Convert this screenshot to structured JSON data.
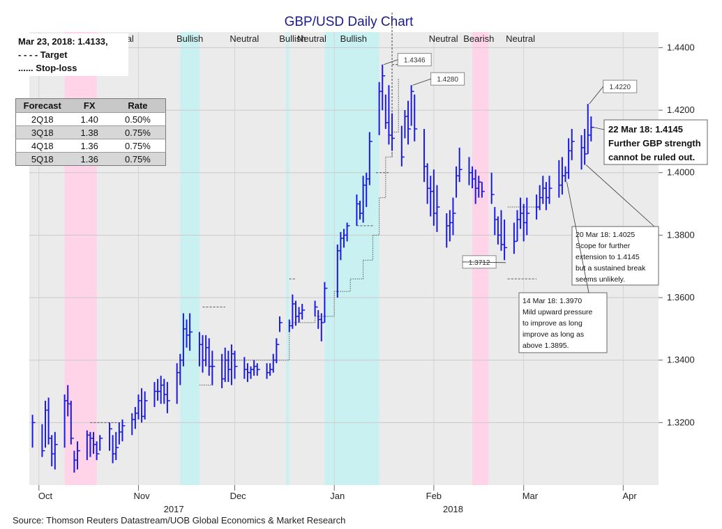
{
  "chart_data": {
    "type": "ohlc",
    "title": "GBP/USD Daily Chart",
    "xlabel": "",
    "ylabel": "",
    "ylim": [
      1.3,
      1.445
    ],
    "y_ticks": [
      "1.3200",
      "1.3400",
      "1.3600",
      "1.3800",
      "1.4000",
      "1.4200",
      "1.4400"
    ],
    "y_tick_values": [
      1.32,
      1.34,
      1.36,
      1.38,
      1.4,
      1.42,
      1.44
    ],
    "x_range": [
      "2017-09-28",
      "2018-04-12"
    ],
    "month_labels": [
      {
        "label": "Oct",
        "date": "2017-10-03"
      },
      {
        "label": "Nov",
        "date": "2017-11-02"
      },
      {
        "label": "Dec",
        "date": "2017-12-02"
      },
      {
        "label": "Jan",
        "date": "2018-01-02"
      },
      {
        "label": "Feb",
        "date": "2018-02-01"
      },
      {
        "label": "Mar",
        "date": "2018-03-03"
      },
      {
        "label": "Apr",
        "date": "2018-04-03"
      }
    ],
    "year_labels": [
      {
        "label": "2017",
        "date": "2017-11-12"
      },
      {
        "label": "2018",
        "date": "2018-02-07"
      }
    ],
    "grid": true,
    "bands": [
      {
        "from": "2017-10-09",
        "to": "2017-10-19",
        "color": "#ffd3e8"
      },
      {
        "from": "2017-11-14",
        "to": "2017-11-20",
        "color": "#c9f1f1"
      },
      {
        "from": "2017-12-17",
        "to": "2017-12-18",
        "color": "#c9f1f1"
      },
      {
        "from": "2017-12-29",
        "to": "2018-01-15",
        "color": "#c9f1f1"
      },
      {
        "from": "2018-02-13",
        "to": "2018-02-18",
        "color": "#ffd3e8"
      }
    ],
    "regime_labels": [
      {
        "label": "Neutral",
        "date": "2017-10-26"
      },
      {
        "label": "Bullish",
        "date": "2017-11-17"
      },
      {
        "label": "Neutral",
        "date": "2017-12-04"
      },
      {
        "label": "Bullish",
        "date": "2017-12-19"
      },
      {
        "label": "Neutral",
        "date": "2017-12-25"
      },
      {
        "label": "Bullish",
        "date": "2018-01-07"
      },
      {
        "label": "Neutral",
        "date": "2018-02-04"
      },
      {
        "label": "Bearish",
        "date": "2018-02-15"
      },
      {
        "label": "Neutral",
        "date": "2018-02-28"
      }
    ],
    "series": [
      {
        "name": "GBP/USD",
        "color": "#1a1adf",
        "points": [
          [
            "2017-09-29",
            1.3225,
            1.312,
            1.32
          ],
          [
            "2017-10-02",
            1.3195,
            1.309,
            1.311
          ],
          [
            "2017-10-03",
            1.327,
            1.312,
            1.324
          ],
          [
            "2017-10-04",
            1.328,
            1.313,
            1.315
          ],
          [
            "2017-10-05",
            1.316,
            1.306,
            1.31
          ],
          [
            "2017-10-06",
            1.317,
            1.305,
            1.313
          ],
          [
            "2017-10-09",
            1.329,
            1.312,
            1.327
          ],
          [
            "2017-10-10",
            1.332,
            1.322,
            1.326
          ],
          [
            "2017-10-11",
            1.327,
            1.313,
            1.315
          ],
          [
            "2017-10-12",
            1.311,
            1.304,
            1.308
          ],
          [
            "2017-10-13",
            1.314,
            1.305,
            1.311
          ],
          [
            "2017-10-16",
            1.3175,
            1.308,
            1.316
          ],
          [
            "2017-10-17",
            1.317,
            1.309,
            1.315
          ],
          [
            "2017-10-18",
            1.317,
            1.31,
            1.313
          ],
          [
            "2017-10-19",
            1.314,
            1.308,
            1.31
          ],
          [
            "2017-10-20",
            1.316,
            1.311,
            1.315
          ],
          [
            "2017-10-23",
            1.32,
            1.311,
            1.318
          ],
          [
            "2017-10-24",
            1.316,
            1.307,
            1.31
          ],
          [
            "2017-10-25",
            1.317,
            1.308,
            1.312
          ],
          [
            "2017-10-26",
            1.32,
            1.313,
            1.317
          ],
          [
            "2017-10-27",
            1.321,
            1.314,
            1.319
          ],
          [
            "2017-10-30",
            1.323,
            1.316,
            1.321
          ],
          [
            "2017-10-31",
            1.325,
            1.318,
            1.323
          ],
          [
            "2017-11-01",
            1.329,
            1.321,
            1.327
          ],
          [
            "2017-11-02",
            1.331,
            1.32,
            1.322
          ],
          [
            "2017-11-03",
            1.33,
            1.321,
            1.327
          ],
          [
            "2017-11-06",
            1.333,
            1.325,
            1.33
          ],
          [
            "2017-11-07",
            1.334,
            1.327,
            1.33
          ],
          [
            "2017-11-08",
            1.335,
            1.326,
            1.332
          ],
          [
            "2017-11-09",
            1.334,
            1.326,
            1.329
          ],
          [
            "2017-11-10",
            1.333,
            1.323,
            1.327
          ],
          [
            "2017-11-13",
            1.339,
            1.326,
            1.336
          ],
          [
            "2017-11-14",
            1.342,
            1.332,
            1.34
          ],
          [
            "2017-11-15",
            1.355,
            1.338,
            1.35
          ],
          [
            "2017-11-16",
            1.353,
            1.344,
            1.348
          ],
          [
            "2017-11-17",
            1.355,
            1.343,
            1.349
          ],
          [
            "2017-11-20",
            1.349,
            1.338,
            1.345
          ],
          [
            "2017-11-21",
            1.348,
            1.336,
            1.34
          ],
          [
            "2017-11-22",
            1.348,
            1.338,
            1.344
          ],
          [
            "2017-11-23",
            1.347,
            1.335,
            1.338
          ],
          [
            "2017-11-24",
            1.343,
            1.332,
            1.338
          ],
          [
            "2017-11-27",
            1.342,
            1.331,
            1.334
          ],
          [
            "2017-11-28",
            1.344,
            1.333,
            1.34
          ],
          [
            "2017-11-29",
            1.343,
            1.333,
            1.337
          ],
          [
            "2017-11-30",
            1.345,
            1.332,
            1.342
          ],
          [
            "2017-12-01",
            1.343,
            1.334,
            1.338
          ],
          [
            "2017-12-04",
            1.341,
            1.334,
            1.337
          ],
          [
            "2017-12-05",
            1.339,
            1.333,
            1.336
          ],
          [
            "2017-12-06",
            1.338,
            1.334,
            1.337
          ],
          [
            "2017-12-07",
            1.34,
            1.335,
            1.338
          ],
          [
            "2017-12-08",
            1.339,
            1.335,
            1.337
          ],
          [
            "2017-12-11",
            1.339,
            1.334,
            1.336
          ],
          [
            "2017-12-12",
            1.339,
            1.335,
            1.337
          ],
          [
            "2017-12-13",
            1.342,
            1.336,
            1.34
          ],
          [
            "2017-12-14",
            1.347,
            1.339,
            1.345
          ],
          [
            "2017-12-15",
            1.354,
            1.349,
            1.352
          ],
          [
            "2017-12-18",
            1.353,
            1.349,
            1.351
          ],
          [
            "2017-12-19",
            1.361,
            1.35,
            1.358
          ],
          [
            "2017-12-20",
            1.359,
            1.351,
            1.354
          ],
          [
            "2017-12-21",
            1.357,
            1.352,
            1.355
          ],
          [
            "2017-12-22",
            1.358,
            1.353,
            1.356
          ],
          [
            "2017-12-26",
            1.359,
            1.354,
            1.357
          ],
          [
            "2017-12-27",
            1.356,
            1.35,
            1.353
          ],
          [
            "2017-12-28",
            1.355,
            1.346,
            1.352
          ],
          [
            "2017-12-29",
            1.365,
            1.352,
            1.363
          ],
          [
            "2018-01-02",
            1.377,
            1.36,
            1.375
          ],
          [
            "2018-01-03",
            1.381,
            1.372,
            1.379
          ],
          [
            "2018-01-04",
            1.382,
            1.376,
            1.38
          ],
          [
            "2018-01-05",
            1.384,
            1.378,
            1.383
          ],
          [
            "2018-01-08",
            1.393,
            1.383,
            1.39
          ],
          [
            "2018-01-09",
            1.391,
            1.385,
            1.387
          ],
          [
            "2018-01-10",
            1.399,
            1.384,
            1.396
          ],
          [
            "2018-01-11",
            1.4,
            1.389,
            1.398
          ],
          [
            "2018-01-12",
            1.413,
            1.396,
            1.41
          ],
          [
            "2018-01-15",
            1.429,
            1.412,
            1.426
          ],
          [
            "2018-01-16",
            1.4346,
            1.42,
            1.431
          ],
          [
            "2018-01-17",
            1.425,
            1.414,
            1.416
          ],
          [
            "2018-01-18",
            1.428,
            1.409,
            1.412
          ],
          [
            "2018-01-19",
            1.419,
            1.407,
            1.411
          ],
          [
            "2018-01-22",
            1.415,
            1.402,
            1.405
          ],
          [
            "2018-01-23",
            1.42,
            1.411,
            1.418
          ],
          [
            "2018-01-24",
            1.423,
            1.409,
            1.414
          ],
          [
            "2018-01-25",
            1.428,
            1.415,
            1.426
          ],
          [
            "2018-01-26",
            1.425,
            1.41,
            1.414
          ],
          [
            "2018-01-29",
            1.414,
            1.397,
            1.402
          ],
          [
            "2018-01-30",
            1.403,
            1.39,
            1.395
          ],
          [
            "2018-01-31",
            1.399,
            1.386,
            1.394
          ],
          [
            "2018-02-01",
            1.401,
            1.383,
            1.387
          ],
          [
            "2018-02-02",
            1.396,
            1.381,
            1.389
          ],
          [
            "2018-02-05",
            1.387,
            1.376,
            1.383
          ],
          [
            "2018-02-06",
            1.388,
            1.378,
            1.384
          ],
          [
            "2018-02-07",
            1.392,
            1.38,
            1.387
          ],
          [
            "2018-02-08",
            1.402,
            1.392,
            1.399
          ],
          [
            "2018-02-09",
            1.408,
            1.397,
            1.401
          ],
          [
            "2018-02-12",
            1.405,
            1.396,
            1.4
          ],
          [
            "2018-02-13",
            1.402,
            1.395,
            1.398
          ],
          [
            "2018-02-14",
            1.401,
            1.39,
            1.395
          ],
          [
            "2018-02-15",
            1.399,
            1.392,
            1.397
          ],
          [
            "2018-02-16",
            1.397,
            1.392,
            1.394
          ],
          [
            "2018-02-19",
            1.4,
            1.39,
            1.393
          ],
          [
            "2018-02-20",
            1.389,
            1.38,
            1.385
          ],
          [
            "2018-02-21",
            1.386,
            1.377,
            1.38
          ],
          [
            "2018-02-22",
            1.388,
            1.375,
            1.377
          ],
          [
            "2018-02-23",
            1.385,
            1.372,
            1.376
          ],
          [
            "2018-02-26",
            1.384,
            1.374,
            1.378
          ],
          [
            "2018-02-27",
            1.388,
            1.378,
            1.385
          ],
          [
            "2018-02-28",
            1.392,
            1.382,
            1.387
          ],
          [
            "2018-03-01",
            1.39,
            1.378,
            1.384
          ],
          [
            "2018-03-02",
            1.392,
            1.38,
            1.387
          ],
          [
            "2018-03-05",
            1.393,
            1.385,
            1.389
          ],
          [
            "2018-03-06",
            1.396,
            1.388,
            1.392
          ],
          [
            "2018-03-07",
            1.399,
            1.39,
            1.395
          ],
          [
            "2018-03-08",
            1.397,
            1.388,
            1.392
          ],
          [
            "2018-03-09",
            1.399,
            1.39,
            1.395
          ],
          [
            "2018-03-12",
            1.404,
            1.392,
            1.396
          ],
          [
            "2018-03-13",
            1.405,
            1.393,
            1.399
          ],
          [
            "2018-03-14",
            1.402,
            1.397,
            1.4
          ],
          [
            "2018-03-15",
            1.411,
            1.398,
            1.407
          ],
          [
            "2018-03-16",
            1.414,
            1.404,
            1.41
          ],
          [
            "2018-03-19",
            1.412,
            1.401,
            1.408
          ],
          [
            "2018-03-20",
            1.414,
            1.4025,
            1.406
          ],
          [
            "2018-03-21",
            1.422,
            1.406,
            1.412
          ],
          [
            "2018-03-22",
            1.418,
            1.41,
            1.4145
          ]
        ]
      }
    ],
    "target_line": [
      {
        "from": "2017-10-17",
        "to": "2017-10-28",
        "y": 1.32
      },
      {
        "from": "2017-11-21",
        "to": "2017-11-28",
        "y": 1.357
      },
      {
        "from": "2017-12-18",
        "to": "2017-12-20",
        "y": 1.366
      },
      {
        "from": "2018-01-08",
        "to": "2018-01-13",
        "y": 1.383
      },
      {
        "from": "2018-01-14",
        "to": "2018-01-18",
        "y": 1.4
      },
      {
        "from": "2018-01-19",
        "to": "2018-01-21",
        "y": 1.4346
      },
      {
        "from": "2018-02-24",
        "to": "2018-03-05",
        "y": 1.366
      }
    ],
    "stop_loss_line": [
      [
        "2017-11-20",
        1.332
      ],
      [
        "2017-11-24",
        1.34
      ],
      [
        "2017-12-04",
        1.34
      ],
      [
        "2017-12-18",
        1.352
      ],
      [
        "2017-12-26",
        1.354
      ],
      [
        "2018-01-01",
        1.362
      ],
      [
        "2018-01-06",
        1.366
      ],
      [
        "2018-01-10",
        1.372
      ],
      [
        "2018-01-13",
        1.38
      ],
      [
        "2018-01-15",
        1.392
      ],
      [
        "2018-01-17",
        1.405
      ],
      [
        "2018-01-19",
        1.413
      ],
      [
        "2018-01-21",
        1.43
      ],
      [
        "2018-02-24",
        1.389
      ],
      [
        "2018-03-05",
        1.389
      ]
    ],
    "vertical_dash": {
      "date": "2018-01-19"
    },
    "price_tags": [
      {
        "text": "1.4346",
        "date": "2018-01-16",
        "y": 1.4346
      },
      {
        "text": "1.4280",
        "date": "2018-01-25",
        "y": 1.428
      },
      {
        "text": "1.4220",
        "date": "2018-03-21",
        "y": 1.422
      },
      {
        "text": "1.3712",
        "date": "2018-02-23",
        "y": 1.3712
      }
    ],
    "callout_main": {
      "lines": [
        "22 Mar 18: 1.4145",
        "Further GBP strength",
        "cannot be ruled out."
      ],
      "date": "2018-03-22",
      "y": 1.4145
    },
    "callouts": [
      {
        "lines": [
          "20 Mar 18: 1.4025",
          "Scope for further",
          "extension to 1.4145",
          "but a sustained break",
          "seems unlikely."
        ],
        "date": "2018-03-20",
        "y": 1.4025
      },
      {
        "lines": [
          "14 Mar 18: 1.3970",
          "Mild upward pressure",
          "to improve as long",
          "improve as long as",
          "above 1.3895."
        ],
        "date": "2018-03-14",
        "y": 1.397
      }
    ]
  },
  "info_box": {
    "line1": "Mar 23, 2018:  1.4133,",
    "line2": "- - - -  Target",
    "line3": "......  Stop-loss"
  },
  "forecast_table": {
    "headers": [
      "Forecast",
      "FX",
      "Rate"
    ],
    "rows": [
      [
        "2Q18",
        "1.40",
        "0.50%"
      ],
      [
        "3Q18",
        "1.38",
        "0.75%"
      ],
      [
        "4Q18",
        "1.36",
        "0.75%"
      ],
      [
        "5Q18",
        "1.36",
        "0.75%"
      ]
    ]
  },
  "source": "Source: Thomson Reuters Datastream/UOB Global Economics & Market Research",
  "colors": {
    "plot_bg": "#ebebeb",
    "bars": "#1a1adf",
    "bearish_band": "#ffd3e8",
    "bullish_band": "#c9f1f1",
    "title": "#1a1a8c"
  }
}
